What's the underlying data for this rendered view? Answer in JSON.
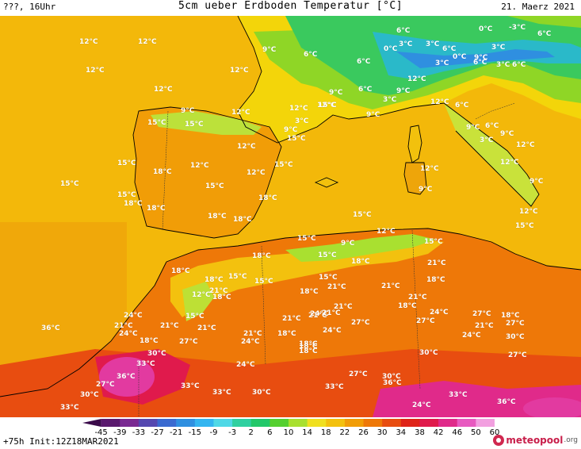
{
  "header": {
    "left": "???, 16Uhr",
    "title": "5cm ueber Erdboden Temperatur [°C]",
    "right": "21. Maerz 2021"
  },
  "colorscale": {
    "ticks": [
      "-45",
      "-39",
      "-33",
      "-27",
      "-21",
      "-15",
      "-9",
      "-3",
      "2",
      "6",
      "10",
      "14",
      "18",
      "22",
      "26",
      "30",
      "34",
      "38",
      "42",
      "46",
      "50",
      "60"
    ],
    "colors": [
      "#3a0a4a",
      "#5a1a6e",
      "#7a2a92",
      "#5548b0",
      "#3a6ad0",
      "#2f8fe0",
      "#33b5f0",
      "#4fd8e6",
      "#2fd0a0",
      "#22c86a",
      "#55d030",
      "#a8e030",
      "#f0e020",
      "#f3c10e",
      "#f19d07",
      "#ee7808",
      "#e84d10",
      "#df2418",
      "#e01a4c",
      "#e02a8a",
      "#e85ac0",
      "#f2a0e0"
    ]
  },
  "temperature_labels": [
    "12°C",
    "12°C",
    "12°C",
    "12°C",
    "9°C",
    "6°C",
    "6°C",
    "6°C",
    "0°C",
    "-3°C",
    "6°C",
    "0°C",
    "3°C",
    "3°C",
    "6°C",
    "0°C",
    "3°C",
    "6°C",
    "9°C",
    "3°C",
    "6°C",
    "3°C",
    "12°C",
    "12°C",
    "9°C",
    "9°C",
    "12°C",
    "15°C",
    "9°C",
    "6°C",
    "3°C",
    "12°C",
    "9°C",
    "3°C",
    "12°C",
    "6°C",
    "12°C",
    "15°C",
    "9°C",
    "9°C",
    "15°C",
    "15°C",
    "3°C",
    "6°C",
    "9°C",
    "9°C",
    "12°C",
    "12°C",
    "12°C",
    "9°C",
    "12°C",
    "15°C",
    "18°C",
    "12°C",
    "15°C",
    "12°C",
    "12°C",
    "15°C",
    "15°C",
    "18°C",
    "18°C",
    "15°C",
    "18°C",
    "18°C",
    "18°C",
    "15°C",
    "15°C",
    "9°C",
    "12°C",
    "15°C",
    "18°C",
    "18°C",
    "15°C",
    "15°C",
    "18°C",
    "18°C",
    "15°C",
    "15°C",
    "21°C",
    "18°C",
    "15°C",
    "18°C",
    "21°C",
    "21°C",
    "18°C",
    "24°C",
    "21°C",
    "24°C",
    "12°C",
    "15°C",
    "18°C",
    "21°C",
    "21°C",
    "21°C",
    "27°C",
    "27°C",
    "24°C",
    "18°C",
    "27°C",
    "21°C",
    "24°C",
    "24°C",
    "27°C",
    "30°C",
    "27°C",
    "18°C",
    "30°C",
    "21°C",
    "18°C",
    "18°C",
    "24°C",
    "24°C",
    "30°C",
    "33°C",
    "33°C",
    "36°C",
    "27°C",
    "30°C",
    "33°C",
    "33°C",
    "30°C",
    "27°C",
    "30°C",
    "33°C",
    "36°C",
    "33°C",
    "24°C",
    "36°C",
    "36°C",
    "18°C",
    "18°C",
    "21°C",
    "21°C",
    "24°C",
    "21°C",
    "21°C",
    "21°C",
    "27°C",
    "18°C"
  ],
  "footer": {
    "init": "+75h Init:12Z18MAR2021",
    "logo": "meteopool",
    "logo_tld": ".org"
  }
}
